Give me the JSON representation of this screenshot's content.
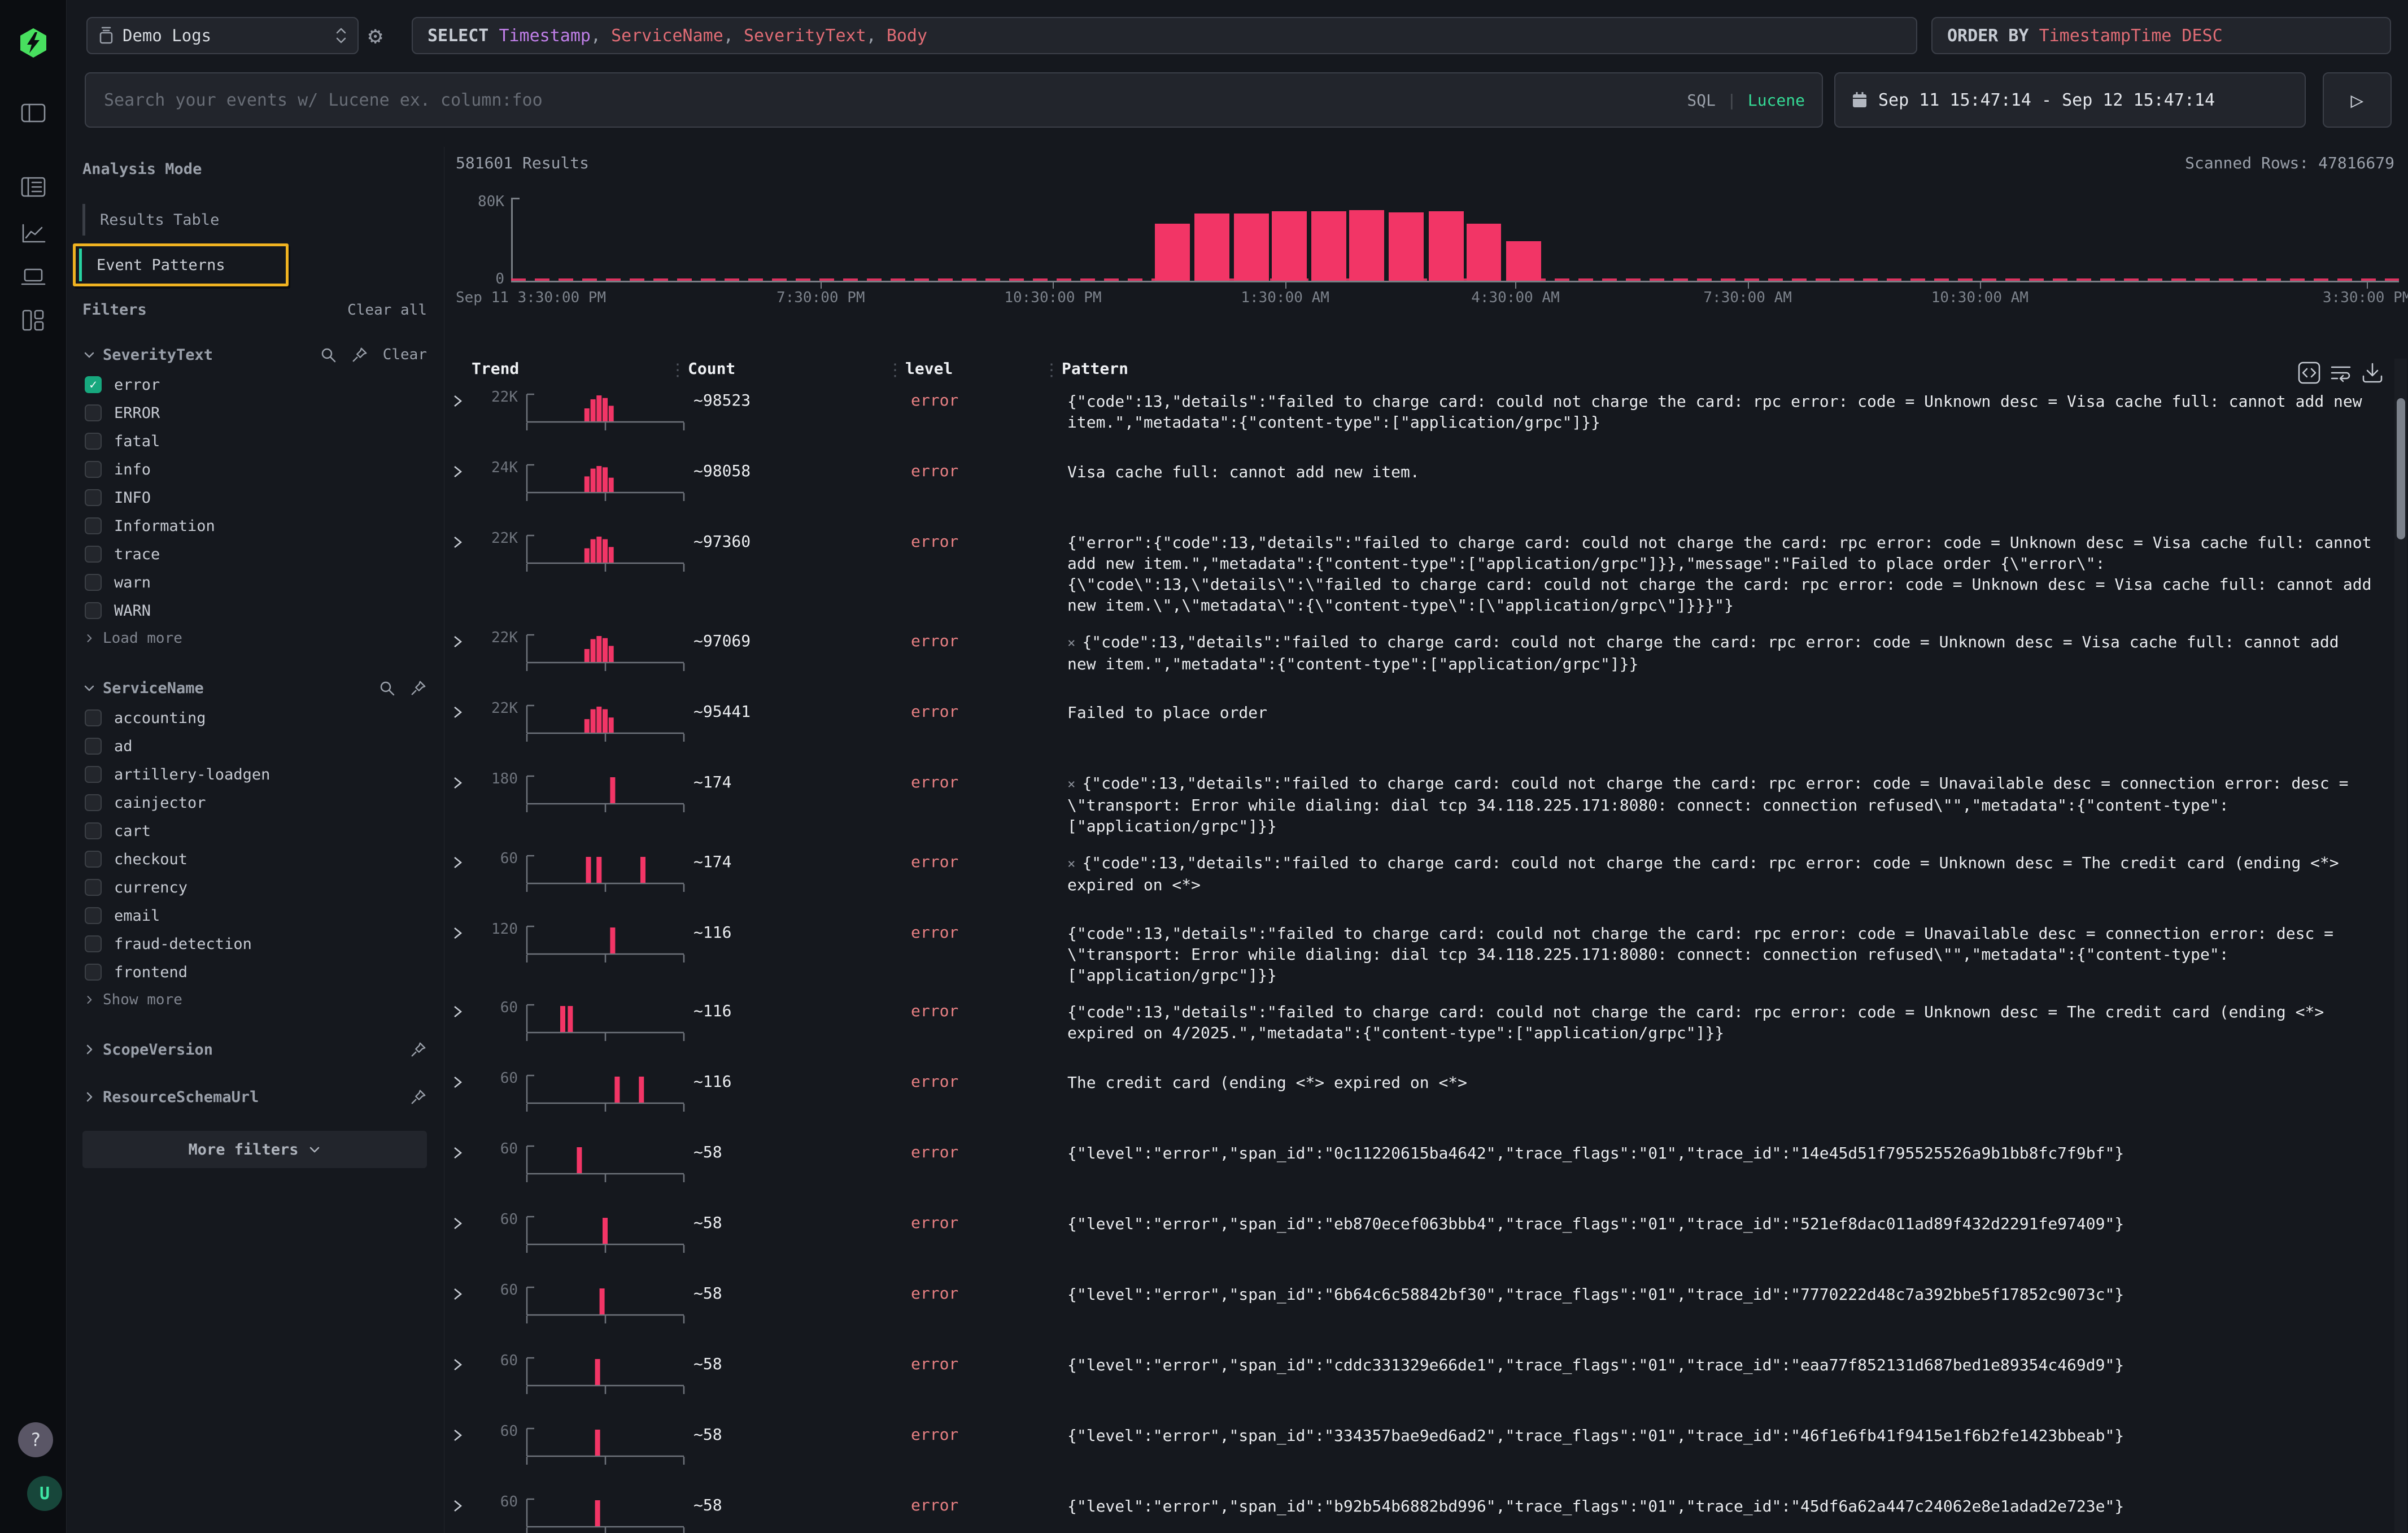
{
  "colors": {
    "pink": "#F23566",
    "err": "#E88083",
    "green": "#35DB96",
    "logo": "#48DF5F",
    "purple": "#C07FE8",
    "salmon": "#E06C75",
    "yellow": "#F0B321",
    "check": "#17A87E",
    "teal": "#27D3A2"
  },
  "rail": {
    "icons": [
      "hyperdx-logo",
      "sidebar-toggle-icon",
      "logs-icon",
      "chart-icon",
      "laptop-icon",
      "dashboard-icon"
    ],
    "help_label": "?",
    "avatar_initial": "U"
  },
  "topbar": {
    "source": {
      "label": "Demo Logs"
    },
    "sql": {
      "segments": [
        {
          "t": "SELECT ",
          "r": "kw"
        },
        {
          "t": "Timestamp",
          "r": "purple"
        },
        {
          "t": ", ",
          "r": "p"
        },
        {
          "t": "ServiceName",
          "r": "salmon"
        },
        {
          "t": ", ",
          "r": "p"
        },
        {
          "t": "SeverityText",
          "r": "salmon"
        },
        {
          "t": ", ",
          "r": "p"
        },
        {
          "t": "Body",
          "r": "salmon"
        }
      ]
    },
    "order_by": {
      "segments": [
        {
          "t": "ORDER BY ",
          "r": "kw"
        },
        {
          "t": "TimestampTime DESC",
          "r": "salmon"
        }
      ]
    },
    "search": {
      "placeholder": "Search your events w/ Lucene ex. column:foo",
      "mode_sql": "SQL",
      "mode_divider": "|",
      "mode_lucene": "Lucene"
    },
    "time_range": "Sep 11 15:47:14 - Sep 12 15:47:14",
    "run_glyph": "▷"
  },
  "sidebar": {
    "analysis_mode": {
      "title": "Analysis Mode",
      "items": [
        {
          "label": "Results Table",
          "active": false
        },
        {
          "label": "Event Patterns",
          "active": true,
          "annotated": true
        }
      ]
    },
    "filters": {
      "title": "Filters",
      "clear_all": "Clear all",
      "groups": [
        {
          "name": "SeverityText",
          "expanded": true,
          "clear": "Clear",
          "options": [
            {
              "label": "error",
              "checked": true
            },
            {
              "label": "ERROR",
              "checked": false
            },
            {
              "label": "fatal",
              "checked": false
            },
            {
              "label": "info",
              "checked": false
            },
            {
              "label": "INFO",
              "checked": false
            },
            {
              "label": "Information",
              "checked": false
            },
            {
              "label": "trace",
              "checked": false
            },
            {
              "label": "warn",
              "checked": false
            },
            {
              "label": "WARN",
              "checked": false
            }
          ],
          "more": "Load more"
        },
        {
          "name": "ServiceName",
          "expanded": true,
          "options": [
            {
              "label": "accounting",
              "checked": false
            },
            {
              "label": "ad",
              "checked": false
            },
            {
              "label": "artillery-loadgen",
              "checked": false
            },
            {
              "label": "cainjector",
              "checked": false
            },
            {
              "label": "cart",
              "checked": false
            },
            {
              "label": "checkout",
              "checked": false
            },
            {
              "label": "currency",
              "checked": false
            },
            {
              "label": "email",
              "checked": false
            },
            {
              "label": "fraud-detection",
              "checked": false
            },
            {
              "label": "frontend",
              "checked": false
            }
          ],
          "more": "Show more"
        },
        {
          "name": "ScopeVersion",
          "expanded": false
        },
        {
          "name": "ResourceSchemaUrl",
          "expanded": false
        }
      ],
      "more_filters": "More filters"
    }
  },
  "results": {
    "count_label": "581601 Results",
    "scanned_label": "Scanned Rows: 47816679"
  },
  "chart_data": {
    "type": "bar",
    "title": "581601 Results histogram",
    "ylim": [
      0,
      80000
    ],
    "yticks": [
      "80K",
      "0"
    ],
    "xticks": [
      {
        "label": "Sep 11 3:30:00 PM",
        "f": 0.0
      },
      {
        "label": "7:30:00 PM",
        "f": 0.164
      },
      {
        "label": "10:30:00 PM",
        "f": 0.287
      },
      {
        "label": "1:30:00 AM",
        "f": 0.41
      },
      {
        "label": "4:30:00 AM",
        "f": 0.532
      },
      {
        "label": "7:30:00 AM",
        "f": 0.655
      },
      {
        "label": "10:30:00 AM",
        "f": 0.778
      },
      {
        "label": "3:30:00 PM",
        "f": 0.983
      }
    ],
    "bar_width_f": 0.0185,
    "bars": [
      {
        "f": 0.341,
        "v": 55000
      },
      {
        "f": 0.362,
        "v": 65000
      },
      {
        "f": 0.383,
        "v": 65000
      },
      {
        "f": 0.403,
        "v": 67000
      },
      {
        "f": 0.424,
        "v": 67000
      },
      {
        "f": 0.444,
        "v": 68000
      },
      {
        "f": 0.465,
        "v": 66000
      },
      {
        "f": 0.486,
        "v": 67000
      },
      {
        "f": 0.506,
        "v": 55000
      },
      {
        "f": 0.527,
        "v": 38000
      }
    ],
    "baseline_activity": true,
    "grid": false,
    "legend": false
  },
  "table": {
    "columns": [
      "Trend",
      "Count",
      "level",
      "Pattern"
    ],
    "rows": [
      {
        "ymax": "22K",
        "count": "~98523",
        "level": "error",
        "prefix": "",
        "spark": [
          [
            0.38,
            0.5
          ],
          [
            0.42,
            0.85
          ],
          [
            0.46,
            1
          ],
          [
            0.5,
            0.9
          ],
          [
            0.54,
            0.6
          ]
        ],
        "pattern": "{\"code\":13,\"details\":\"failed to charge card: could not charge the card: rpc error: code = Unknown desc = Visa cache full: cannot add new item.\",\"metadata\":{\"content-type\":[\"application/grpc\"]}}"
      },
      {
        "ymax": "24K",
        "count": "~98058",
        "level": "error",
        "prefix": "",
        "spark": [
          [
            0.38,
            0.6
          ],
          [
            0.42,
            0.9
          ],
          [
            0.46,
            1
          ],
          [
            0.5,
            0.95
          ],
          [
            0.54,
            0.55
          ]
        ],
        "pattern": "Visa cache full: cannot add new item."
      },
      {
        "ymax": "22K",
        "count": "~97360",
        "level": "error",
        "prefix": "",
        "spark": [
          [
            0.38,
            0.55
          ],
          [
            0.42,
            0.9
          ],
          [
            0.46,
            1
          ],
          [
            0.5,
            0.9
          ],
          [
            0.54,
            0.6
          ]
        ],
        "pattern": "{\"error\":{\"code\":13,\"details\":\"failed to charge card: could not charge the card: rpc error: code = Unknown desc = Visa cache full: cannot add new item.\",\"metadata\":{\"content-type\":[\"application/grpc\"]}},\"message\":\"Failed to place order {\\\"error\\\":{\\\"code\\\":13,\\\"details\\\":\\\"failed to charge card: could not charge the card: rpc error: code = Unknown desc = Visa cache full: cannot add new item.\\\",\\\"metadata\\\":{\\\"content-type\\\":[\\\"application/grpc\\\"]}}}\"}"
      },
      {
        "ymax": "22K",
        "count": "~97069",
        "level": "error",
        "prefix": "×",
        "spark": [
          [
            0.38,
            0.5
          ],
          [
            0.42,
            0.88
          ],
          [
            0.46,
            1
          ],
          [
            0.5,
            0.92
          ],
          [
            0.54,
            0.62
          ]
        ],
        "pattern": "{\"code\":13,\"details\":\"failed to charge card: could not charge the card: rpc error: code = Unknown desc = Visa cache full: cannot add new item.\",\"metadata\":{\"content-type\":[\"application/grpc\"]}}"
      },
      {
        "ymax": "22K",
        "count": "~95441",
        "level": "error",
        "prefix": "",
        "spark": [
          [
            0.38,
            0.52
          ],
          [
            0.42,
            0.9
          ],
          [
            0.46,
            1
          ],
          [
            0.5,
            0.9
          ],
          [
            0.54,
            0.58
          ]
        ],
        "pattern": "Failed to place order"
      },
      {
        "ymax": "180",
        "count": "~174",
        "level": "error",
        "prefix": "×",
        "spark": [
          [
            0.55,
            1
          ]
        ],
        "pattern": "{\"code\":13,\"details\":\"failed to charge card: could not charge the card: rpc error: code = Unavailable desc = connection error: desc = \\\"transport: Error while dialing: dial tcp 34.118.225.171:8080: connect: connection refused\\\"\",\"metadata\":{\"content-type\":[\"application/grpc\"]}}"
      },
      {
        "ymax": "60",
        "count": "~174",
        "level": "error",
        "prefix": "×",
        "spark": [
          [
            0.39,
            1
          ],
          [
            0.46,
            1
          ],
          [
            0.75,
            1
          ]
        ],
        "pattern": "{\"code\":13,\"details\":\"failed to charge card: could not charge the card: rpc error: code = Unknown desc = The credit card (ending <*> expired on <*>"
      },
      {
        "ymax": "120",
        "count": "~116",
        "level": "error",
        "prefix": "",
        "spark": [
          [
            0.55,
            1
          ]
        ],
        "pattern": "{\"code\":13,\"details\":\"failed to charge card: could not charge the card: rpc error: code = Unavailable desc = connection error: desc = \\\"transport: Error while dialing: dial tcp 34.118.225.171:8080: connect: connection refused\\\"\",\"metadata\":{\"content-type\":[\"application/grpc\"]}}"
      },
      {
        "ymax": "60",
        "count": "~116",
        "level": "error",
        "prefix": "",
        "spark": [
          [
            0.22,
            1
          ],
          [
            0.27,
            1
          ]
        ],
        "pattern": "{\"code\":13,\"details\":\"failed to charge card: could not charge the card: rpc error: code = Unknown desc = The credit card (ending <*> expired on 4/2025.\",\"metadata\":{\"content-type\":[\"application/grpc\"]}}"
      },
      {
        "ymax": "60",
        "count": "~116",
        "level": "error",
        "prefix": "",
        "spark": [
          [
            0.58,
            1
          ],
          [
            0.74,
            1
          ]
        ],
        "pattern": "The credit card (ending <*> expired on <*>"
      },
      {
        "ymax": "60",
        "count": "~58",
        "level": "error",
        "prefix": "",
        "spark": [
          [
            0.33,
            1
          ]
        ],
        "pattern": "{\"level\":\"error\",\"span_id\":\"0c11220615ba4642\",\"trace_flags\":\"01\",\"trace_id\":\"14e45d51f795525526a9b1bb8fc7f9bf\"}"
      },
      {
        "ymax": "60",
        "count": "~58",
        "level": "error",
        "prefix": "",
        "spark": [
          [
            0.5,
            1
          ]
        ],
        "pattern": "{\"level\":\"error\",\"span_id\":\"eb870ecef063bbb4\",\"trace_flags\":\"01\",\"trace_id\":\"521ef8dac011ad89f432d2291fe97409\"}"
      },
      {
        "ymax": "60",
        "count": "~58",
        "level": "error",
        "prefix": "",
        "spark": [
          [
            0.48,
            1
          ]
        ],
        "pattern": "{\"level\":\"error\",\"span_id\":\"6b64c6c58842bf30\",\"trace_flags\":\"01\",\"trace_id\":\"7770222d48c7a392bbe5f17852c9073c\"}"
      },
      {
        "ymax": "60",
        "count": "~58",
        "level": "error",
        "prefix": "",
        "spark": [
          [
            0.45,
            1
          ]
        ],
        "pattern": "{\"level\":\"error\",\"span_id\":\"cddc331329e66de1\",\"trace_flags\":\"01\",\"trace_id\":\"eaa77f852131d687bed1e89354c469d9\"}"
      },
      {
        "ymax": "60",
        "count": "~58",
        "level": "error",
        "prefix": "",
        "spark": [
          [
            0.45,
            1
          ]
        ],
        "pattern": "{\"level\":\"error\",\"span_id\":\"334357bae9ed6ad2\",\"trace_flags\":\"01\",\"trace_id\":\"46f1e6fb41f9415e1f6b2fe1423bbeab\"}"
      },
      {
        "ymax": "60",
        "count": "~58",
        "level": "error",
        "prefix": "",
        "spark": [
          [
            0.45,
            1
          ]
        ],
        "pattern": "{\"level\":\"error\",\"span_id\":\"b92b54b6882bd996\",\"trace_flags\":\"01\",\"trace_id\":\"45df6a62a447c24062e8e1adad2e723e\"}"
      }
    ]
  }
}
